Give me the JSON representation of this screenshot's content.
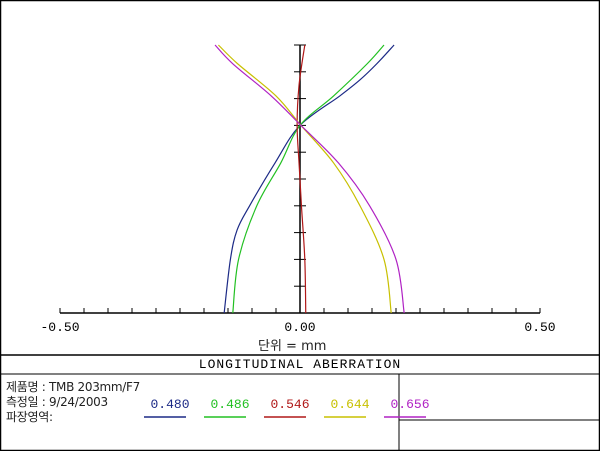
{
  "info": {
    "product_label": "제품명 : TMB 203mm/F7",
    "date_label": "측정일 : 9/24/2003",
    "wavelength_label": "파장영역:"
  },
  "chart_data": {
    "type": "line",
    "title": "LONGITUDINAL ABERRATION",
    "xlabel": "단위 = mm",
    "xlim": [
      -0.5,
      0.5
    ],
    "ylim": [
      0,
      1
    ],
    "x_tick_labels": [
      "-0.50",
      "0.00",
      "0.50"
    ],
    "x_ticks": [
      -0.5,
      0.0,
      0.5
    ],
    "x_minor_step": 0.05,
    "y_minor_step": 0.1,
    "grid": false,
    "series": [
      {
        "name": "0.480",
        "color": "#1c2a86",
        "points": [
          [
            -0.158,
            0
          ],
          [
            -0.145,
            0.2
          ],
          [
            -0.131,
            0.31
          ],
          [
            -0.105,
            0.4
          ],
          [
            -0.052,
            0.56
          ],
          [
            0,
            0.7
          ],
          [
            0.083,
            0.81
          ],
          [
            0.125,
            0.87
          ],
          [
            0.16,
            0.93
          ],
          [
            0.196,
            1
          ]
        ]
      },
      {
        "name": "0.486",
        "color": "#22c022",
        "points": [
          [
            -0.14,
            0
          ],
          [
            -0.128,
            0.2
          ],
          [
            -0.09,
            0.4
          ],
          [
            -0.04,
            0.56
          ],
          [
            0,
            0.7
          ],
          [
            0.07,
            0.81
          ],
          [
            0.14,
            0.93
          ],
          [
            0.175,
            1
          ]
        ]
      },
      {
        "name": "0.546",
        "color": "#b01818",
        "points": [
          [
            0.012,
            0
          ],
          [
            0.01,
            0.2
          ],
          [
            0.003,
            0.4
          ],
          [
            -0.002,
            0.56
          ],
          [
            -0.006,
            0.7
          ],
          [
            -0.002,
            0.85
          ],
          [
            0.01,
            1
          ]
        ]
      },
      {
        "name": "0.644",
        "color": "#c8c000",
        "points": [
          [
            0.19,
            0
          ],
          [
            0.175,
            0.2
          ],
          [
            0.125,
            0.4
          ],
          [
            0.07,
            0.56
          ],
          [
            0.002,
            0.7
          ],
          [
            -0.05,
            0.81
          ],
          [
            -0.13,
            0.93
          ],
          [
            -0.17,
            1
          ]
        ]
      },
      {
        "name": "0.656",
        "color": "#b022c4",
        "points": [
          [
            0.217,
            0
          ],
          [
            0.2,
            0.2
          ],
          [
            0.145,
            0.4
          ],
          [
            0.08,
            0.56
          ],
          [
            0.002,
            0.7
          ],
          [
            -0.06,
            0.81
          ],
          [
            -0.14,
            0.93
          ],
          [
            -0.177,
            1
          ]
        ]
      }
    ]
  }
}
